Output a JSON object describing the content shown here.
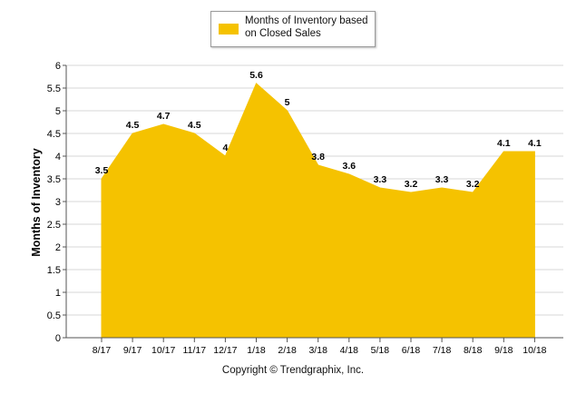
{
  "chart_data": {
    "type": "area",
    "categories": [
      "8/17",
      "9/17",
      "10/17",
      "11/17",
      "12/17",
      "1/18",
      "2/18",
      "3/18",
      "4/18",
      "5/18",
      "6/18",
      "7/18",
      "8/18",
      "9/18",
      "10/18"
    ],
    "series": [
      {
        "name": "Months of Inventory based on Closed Sales",
        "values": [
          3.5,
          4.5,
          4.7,
          4.5,
          4,
          5.6,
          5,
          3.8,
          3.6,
          3.3,
          3.2,
          3.3,
          3.2,
          4.1,
          4.1
        ]
      }
    ],
    "data_labels": [
      "3.5",
      "4.5",
      "4.7",
      "4.5",
      "4",
      "5.6",
      "5",
      "3.8",
      "3.6",
      "3.3",
      "3.2",
      "3.3",
      "3.2",
      "4.1",
      "4.1"
    ],
    "ylabel": "Months of Inventory",
    "xlabel": "",
    "ylim": [
      0,
      6
    ],
    "yticks": [
      "0",
      "0.5",
      "1",
      "1.5",
      "2",
      "2.5",
      "3",
      "3.5",
      "4",
      "4.5",
      "5",
      "5.5",
      "6"
    ],
    "grid": true,
    "legend_position": "top-center",
    "fill_color": "#F5C200"
  },
  "legend": {
    "label": "Months of Inventory based on Closed Sales"
  },
  "footer": {
    "copyright": "Copyright © Trendgraphix, Inc."
  }
}
